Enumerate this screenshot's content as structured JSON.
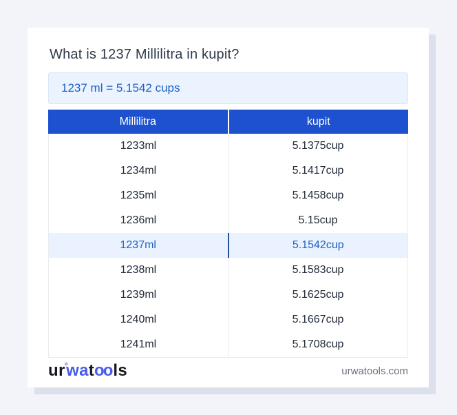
{
  "card": {
    "title": "What is 1237 Millilitra in kupit?",
    "result_text": "1237 ml = 5.1542 cups"
  },
  "table": {
    "headers": [
      "Millilitra",
      "kupit"
    ],
    "rows": [
      {
        "ml": "1233ml",
        "cup": "5.1375cup",
        "highlight": false
      },
      {
        "ml": "1234ml",
        "cup": "5.1417cup",
        "highlight": false
      },
      {
        "ml": "1235ml",
        "cup": "5.1458cup",
        "highlight": false
      },
      {
        "ml": "1236ml",
        "cup": "5.15cup",
        "highlight": false
      },
      {
        "ml": "1237ml",
        "cup": "5.1542cup",
        "highlight": true
      },
      {
        "ml": "1238ml",
        "cup": "5.1583cup",
        "highlight": false
      },
      {
        "ml": "1239ml",
        "cup": "5.1625cup",
        "highlight": false
      },
      {
        "ml": "1240ml",
        "cup": "5.1667cup",
        "highlight": false
      },
      {
        "ml": "1241ml",
        "cup": "5.1708cup",
        "highlight": false
      }
    ]
  },
  "footer": {
    "logo": {
      "part_ur": "ur",
      "ring": "°",
      "part_wa": "wa",
      "part_t": "t",
      "part_oo": "oo",
      "part_ls": "ls"
    },
    "site_url": "urwatools.com"
  },
  "colors": {
    "page_background": "#f2f4f9",
    "card_shadow": "#dbe0ec",
    "header_blue": "#1e51cf",
    "result_box_background": "#eaf3fe",
    "result_box_border": "#d8e6fa",
    "accent_text_blue": "#2160c4",
    "highlight_row_background": "#e9f2fe",
    "highlight_divider": "#234f9c",
    "title_text": "#2e3a4a",
    "row_text": "#222b38",
    "muted_gray": "#6b7280",
    "logo_blue": "#4a5cec",
    "table_border": "#e9ebf0"
  }
}
